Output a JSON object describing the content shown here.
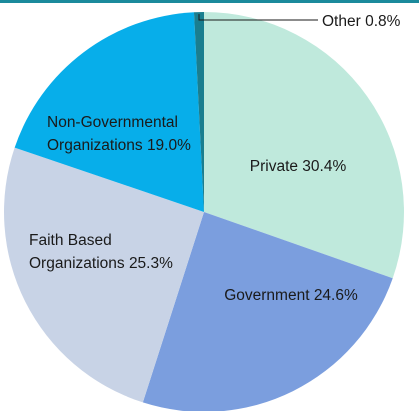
{
  "colors": {
    "top_rule": "#1b8a9c",
    "leader_line": "#1a1a1a",
    "text": "#1a1a1a"
  },
  "chart_data": {
    "type": "pie",
    "title": "",
    "slices": [
      {
        "label_lines": [
          "Private 30.4%"
        ],
        "category": "Private",
        "value": 30.4,
        "color": "#bfe9dc"
      },
      {
        "label_lines": [
          "Government 24.6%"
        ],
        "category": "Government",
        "value": 24.6,
        "color": "#7b9ede"
      },
      {
        "label_lines": [
          "Faith Based",
          "Organizations 25.3%"
        ],
        "category": "Faith Based Organizations",
        "value": 25.3,
        "color": "#c8d3e6"
      },
      {
        "label_lines": [
          "Non-Governmental",
          "Organizations 19.0%"
        ],
        "category": "Non-Governmental Organizations",
        "value": 19.0,
        "color": "#07aeea"
      },
      {
        "label_lines": [
          "Other 0.8%"
        ],
        "category": "Other",
        "value": 0.8,
        "color": "#1a7e8f"
      }
    ],
    "start": "top",
    "direction": "clockwise"
  }
}
